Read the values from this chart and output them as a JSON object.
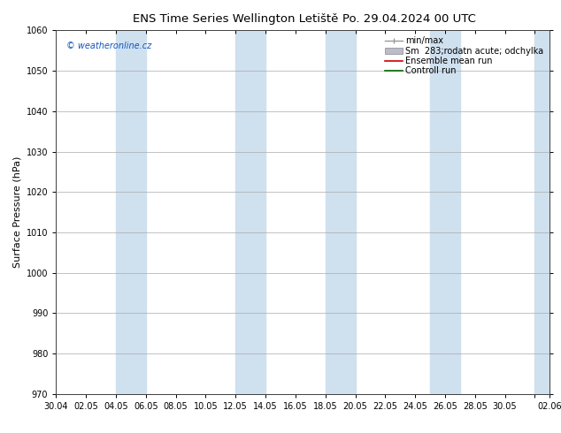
{
  "title_left": "ENS Time Series Wellington Letiště",
  "title_right": "Po. 29.04.2024 00 UTC",
  "ylabel": "Surface Pressure (hPa)",
  "ylim": [
    970,
    1060
  ],
  "yticks": [
    970,
    980,
    990,
    1000,
    1010,
    1020,
    1030,
    1040,
    1050,
    1060
  ],
  "xtick_labels": [
    "30.04",
    "02.05",
    "04.05",
    "06.05",
    "08.05",
    "10.05",
    "12.05",
    "14.05",
    "16.05",
    "18.05",
    "20.05",
    "22.05",
    "24.05",
    "26.05",
    "28.05",
    "30.05",
    "",
    "02.06"
  ],
  "watermark": "© weatheronline.cz",
  "legend_entries": [
    "min/max",
    "Sm  283;rodatn acute; odchylka",
    "Ensemble mean run",
    "Controll run"
  ],
  "band_color": "#cfe0ef",
  "background_color": "#ffffff",
  "grid_color": "#aaaaaa",
  "ensemble_mean_color": "#cc0000",
  "control_run_color": "#006600",
  "minmax_color": "#999999",
  "std_color": "#bbbbcc",
  "title_fontsize": 9.5,
  "tick_fontsize": 7,
  "ylabel_fontsize": 8,
  "legend_fontsize": 7,
  "band_starts": [
    4,
    12,
    18,
    25,
    33
  ],
  "band_ends": [
    6,
    14,
    20,
    27,
    35
  ]
}
